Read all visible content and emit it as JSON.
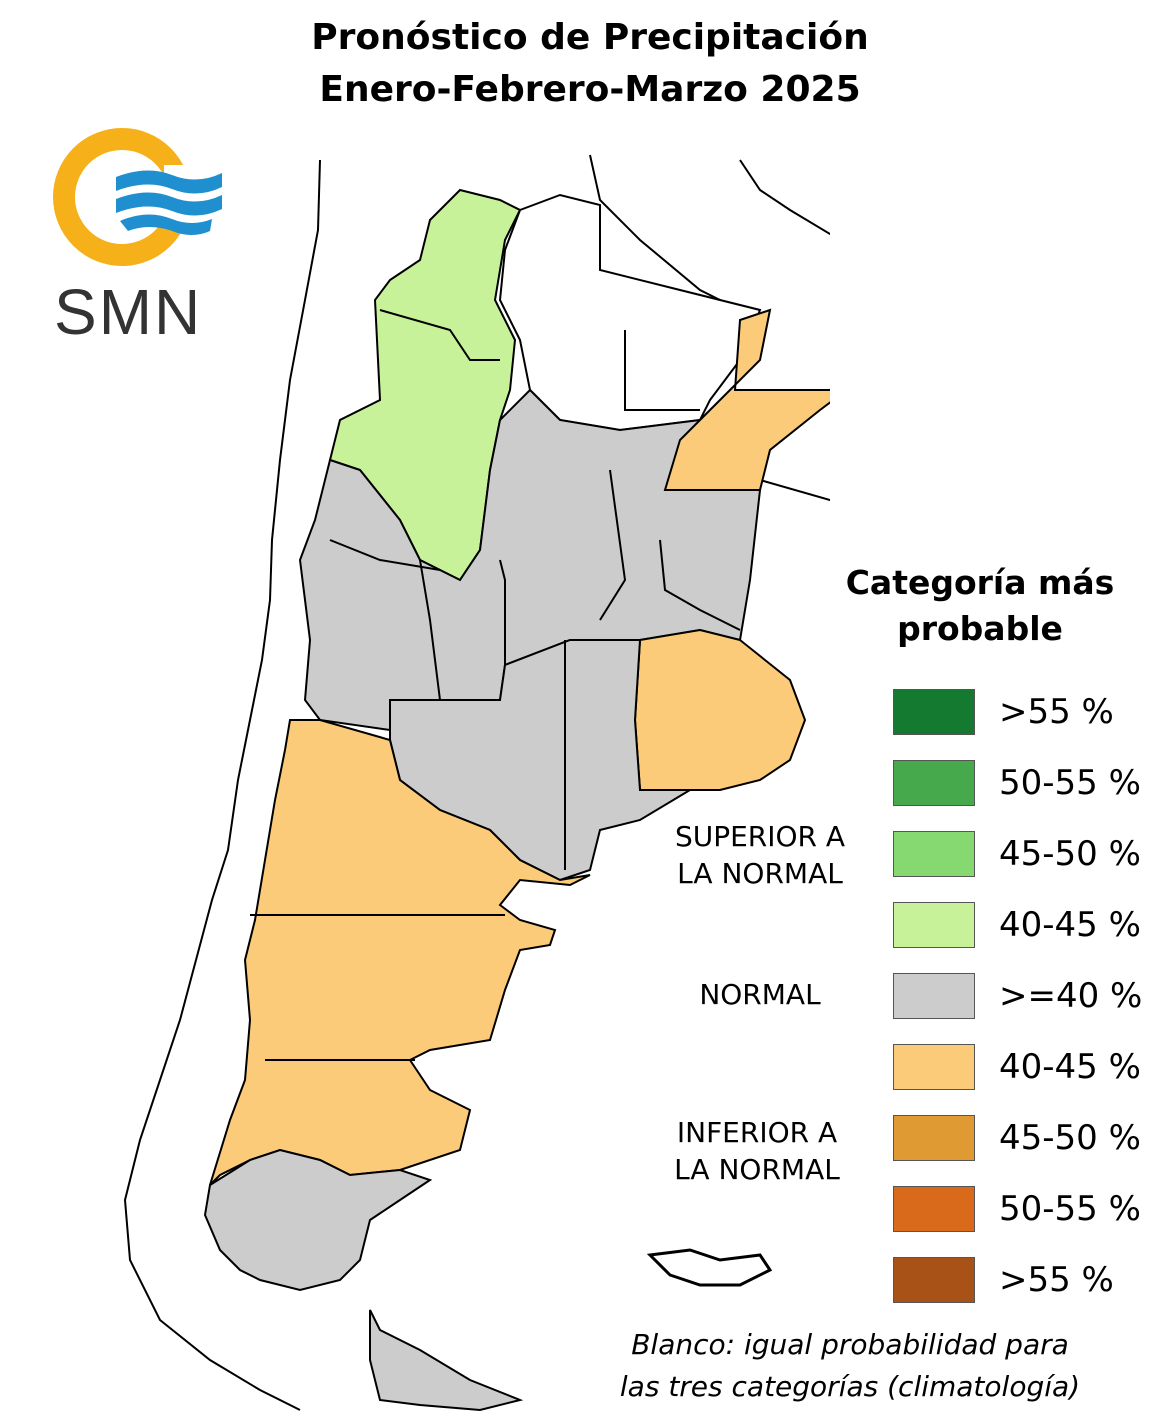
{
  "title": {
    "line1": "Pronóstico de Precipitación",
    "line2": "Enero-Febrero-Marzo 2025"
  },
  "logo": {
    "text": "SMN",
    "icon": "smn-logo-icon",
    "ring_color": "#f6b01a",
    "wave_color": "#1f8fd0"
  },
  "legend": {
    "title_line1": "Categoría más",
    "title_line2": "probable",
    "items": [
      {
        "label": ">55 %",
        "color": "#137a30"
      },
      {
        "label": "50-55 %",
        "color": "#46a94b"
      },
      {
        "label": "45-50 %",
        "color": "#86d970"
      },
      {
        "label": "40-45 %",
        "color": "#c8f29a"
      },
      {
        "label": ">=40 %",
        "color": "#cccccc"
      },
      {
        "label": "40-45 %",
        "color": "#fbcb7a"
      },
      {
        "label": "45-50 %",
        "color": "#e09a33"
      },
      {
        "label": "50-55 %",
        "color": "#d96a1c"
      },
      {
        "label": ">55 %",
        "color": "#a85218"
      }
    ],
    "categories": {
      "superior_line1": "SUPERIOR A",
      "superior_line2": "LA NORMAL",
      "normal": "NORMAL",
      "inferior_line1": "INFERIOR A",
      "inferior_line2": "LA NORMAL"
    }
  },
  "note": {
    "line1": "Blanco: igual probabilidad para",
    "line2": "las tres categorías (climatología)"
  }
}
